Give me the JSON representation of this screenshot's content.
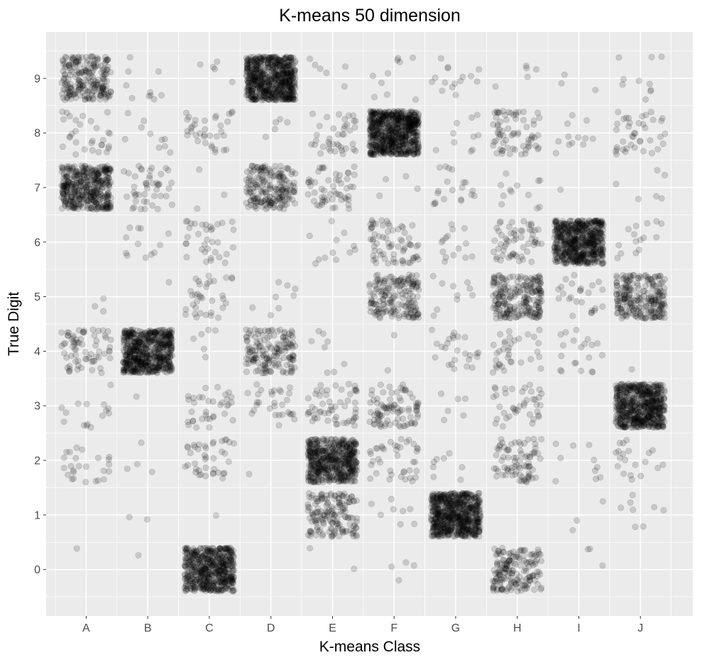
{
  "chart_data": {
    "type": "scatter",
    "title": "K-means 50 dimension",
    "xlabel": "K-means Class",
    "ylabel": "True Digit",
    "categories": [
      "A",
      "B",
      "C",
      "D",
      "E",
      "F",
      "G",
      "H",
      "I",
      "J"
    ],
    "y_ticks": [
      0,
      1,
      2,
      3,
      4,
      5,
      6,
      7,
      8,
      9
    ],
    "y_tick_labels": [
      "0",
      "1",
      "2",
      "3",
      "4",
      "5",
      "6",
      "7",
      "8",
      "9"
    ],
    "ylim": [
      -0.85,
      9.85
    ],
    "xlim": [
      0.35,
      10.85
    ],
    "jitter": {
      "x": 0.4,
      "y": 0.4
    },
    "grid": true,
    "background": "#ebebeb",
    "grid_color": "#ffffff",
    "point_color": "#000000",
    "point_alpha": 0.15,
    "counts_note": "approximate number of points per (class, digit) cell",
    "cells": [
      {
        "x": "A",
        "y": 9,
        "n": 220
      },
      {
        "x": "A",
        "y": 8,
        "n": 30
      },
      {
        "x": "A",
        "y": 7,
        "n": 420
      },
      {
        "x": "A",
        "y": 5,
        "n": 3
      },
      {
        "x": "A",
        "y": 4,
        "n": 70
      },
      {
        "x": "A",
        "y": 3,
        "n": 15
      },
      {
        "x": "A",
        "y": 2,
        "n": 25
      },
      {
        "x": "A",
        "y": 0,
        "n": 1
      },
      {
        "x": "B",
        "y": 9,
        "n": 10
      },
      {
        "x": "B",
        "y": 8,
        "n": 10
      },
      {
        "x": "B",
        "y": 7,
        "n": 45
      },
      {
        "x": "B",
        "y": 6,
        "n": 12
      },
      {
        "x": "B",
        "y": 5,
        "n": 1
      },
      {
        "x": "B",
        "y": 4,
        "n": 600
      },
      {
        "x": "B",
        "y": 3,
        "n": 1
      },
      {
        "x": "B",
        "y": 2,
        "n": 4
      },
      {
        "x": "B",
        "y": 1,
        "n": 2
      },
      {
        "x": "B",
        "y": 0,
        "n": 1
      },
      {
        "x": "C",
        "y": 9,
        "n": 5
      },
      {
        "x": "C",
        "y": 8,
        "n": 35
      },
      {
        "x": "C",
        "y": 7,
        "n": 3
      },
      {
        "x": "C",
        "y": 6,
        "n": 35
      },
      {
        "x": "C",
        "y": 5,
        "n": 35
      },
      {
        "x": "C",
        "y": 4,
        "n": 6
      },
      {
        "x": "C",
        "y": 3,
        "n": 35
      },
      {
        "x": "C",
        "y": 2,
        "n": 40
      },
      {
        "x": "C",
        "y": 1,
        "n": 1
      },
      {
        "x": "C",
        "y": 0,
        "n": 550
      },
      {
        "x": "D",
        "y": 9,
        "n": 650
      },
      {
        "x": "D",
        "y": 8,
        "n": 5
      },
      {
        "x": "D",
        "y": 7,
        "n": 200
      },
      {
        "x": "D",
        "y": 5,
        "n": 8
      },
      {
        "x": "D",
        "y": 4,
        "n": 160
      },
      {
        "x": "D",
        "y": 3,
        "n": 30
      },
      {
        "x": "D",
        "y": 2,
        "n": 1
      },
      {
        "x": "E",
        "y": 9,
        "n": 6
      },
      {
        "x": "E",
        "y": 8,
        "n": 40
      },
      {
        "x": "E",
        "y": 7,
        "n": 55
      },
      {
        "x": "E",
        "y": 6,
        "n": 12
      },
      {
        "x": "E",
        "y": 4,
        "n": 8
      },
      {
        "x": "E",
        "y": 3,
        "n": 55
      },
      {
        "x": "E",
        "y": 2,
        "n": 520
      },
      {
        "x": "E",
        "y": 1,
        "n": 160
      },
      {
        "x": "E",
        "y": 0,
        "n": 2
      },
      {
        "x": "F",
        "y": 9,
        "n": 10
      },
      {
        "x": "F",
        "y": 8,
        "n": 700
      },
      {
        "x": "F",
        "y": 7,
        "n": 4
      },
      {
        "x": "F",
        "y": 6,
        "n": 70
      },
      {
        "x": "F",
        "y": 5,
        "n": 180
      },
      {
        "x": "F",
        "y": 4,
        "n": 2
      },
      {
        "x": "F",
        "y": 3,
        "n": 90
      },
      {
        "x": "F",
        "y": 2,
        "n": 40
      },
      {
        "x": "F",
        "y": 1,
        "n": 8
      },
      {
        "x": "F",
        "y": 0,
        "n": 4
      },
      {
        "x": "G",
        "y": 9,
        "n": 15
      },
      {
        "x": "G",
        "y": 8,
        "n": 10
      },
      {
        "x": "G",
        "y": 7,
        "n": 20
      },
      {
        "x": "G",
        "y": 6,
        "n": 15
      },
      {
        "x": "G",
        "y": 5,
        "n": 10
      },
      {
        "x": "G",
        "y": 4,
        "n": 25
      },
      {
        "x": "G",
        "y": 3,
        "n": 6
      },
      {
        "x": "G",
        "y": 2,
        "n": 8
      },
      {
        "x": "G",
        "y": 1,
        "n": 650
      },
      {
        "x": "H",
        "y": 9,
        "n": 5
      },
      {
        "x": "H",
        "y": 8,
        "n": 70
      },
      {
        "x": "H",
        "y": 7,
        "n": 12
      },
      {
        "x": "H",
        "y": 6,
        "n": 60
      },
      {
        "x": "H",
        "y": 5,
        "n": 220
      },
      {
        "x": "H",
        "y": 4,
        "n": 35
      },
      {
        "x": "H",
        "y": 3,
        "n": 40
      },
      {
        "x": "H",
        "y": 2,
        "n": 80
      },
      {
        "x": "H",
        "y": 0,
        "n": 170
      },
      {
        "x": "I",
        "y": 9,
        "n": 3
      },
      {
        "x": "I",
        "y": 8,
        "n": 12
      },
      {
        "x": "I",
        "y": 7,
        "n": 1
      },
      {
        "x": "I",
        "y": 6,
        "n": 600
      },
      {
        "x": "I",
        "y": 5,
        "n": 25
      },
      {
        "x": "I",
        "y": 4,
        "n": 20
      },
      {
        "x": "I",
        "y": 2,
        "n": 10
      },
      {
        "x": "I",
        "y": 1,
        "n": 3
      },
      {
        "x": "I",
        "y": 0,
        "n": 3
      },
      {
        "x": "J",
        "y": 9,
        "n": 10
      },
      {
        "x": "J",
        "y": 8,
        "n": 40
      },
      {
        "x": "J",
        "y": 7,
        "n": 6
      },
      {
        "x": "J",
        "y": 6,
        "n": 15
      },
      {
        "x": "J",
        "y": 5,
        "n": 240
      },
      {
        "x": "J",
        "y": 4,
        "n": 1
      },
      {
        "x": "J",
        "y": 3,
        "n": 600
      },
      {
        "x": "J",
        "y": 2,
        "n": 20
      },
      {
        "x": "J",
        "y": 1,
        "n": 8
      }
    ]
  }
}
